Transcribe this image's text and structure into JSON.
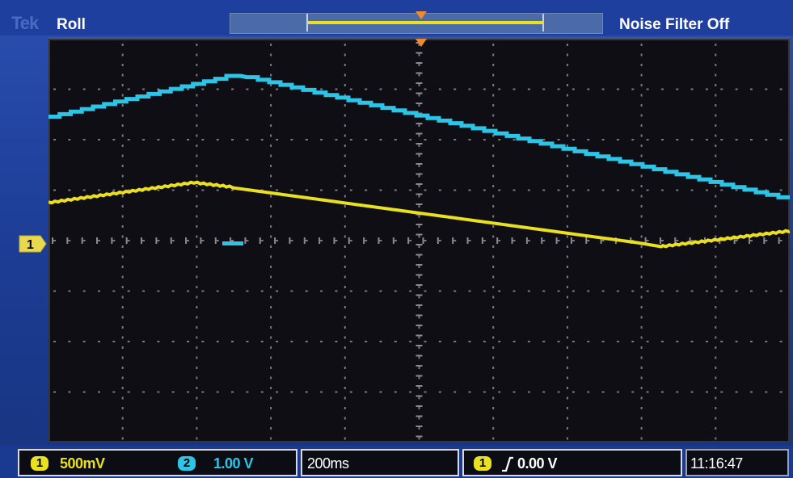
{
  "header": {
    "logo": "Tek",
    "acquisition_mode": "Roll",
    "noise_filter": "Noise Filter Off"
  },
  "channel1": {
    "marker": "1",
    "scale": "500mV",
    "color": "#e8e020"
  },
  "channel2": {
    "marker": "2",
    "scale": "1.00 V",
    "color": "#2ec4e6"
  },
  "timebase": {
    "scale": "200ms"
  },
  "trigger": {
    "source": "1",
    "level": "0.00 V",
    "marker_color": "#f08a2a"
  },
  "clock": {
    "time": "11:16:47"
  },
  "grid": {
    "divisions_x": 10,
    "divisions_y": 8
  }
}
